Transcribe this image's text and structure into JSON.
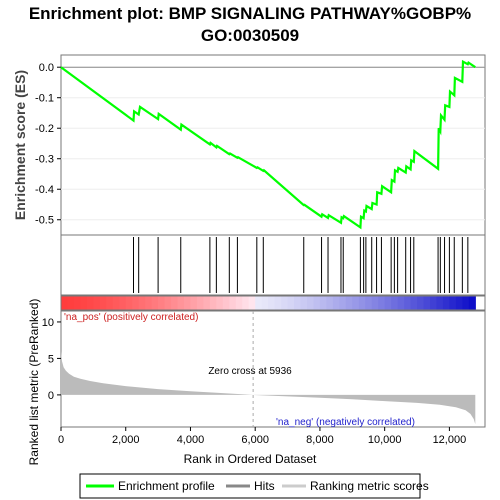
{
  "chart_data": {
    "type": "line",
    "title_lines": [
      "Enrichment plot: BMP SIGNALING PATHWAY%GOBP%",
      "GO:0030509"
    ],
    "top_panel": {
      "ylabel": "Enrichment score (ES)",
      "ylim": [
        -0.55,
        0.04
      ],
      "yticks": [
        0.0,
        -0.1,
        -0.2,
        -0.3,
        -0.4,
        -0.5
      ],
      "ytick_labels": [
        "0.0",
        "-0.1",
        "-0.2",
        "-0.3",
        "-0.4",
        "-0.5"
      ],
      "series": [
        {
          "name": "Enrichment profile",
          "color": "#00ff00",
          "x": [
            0,
            2240,
            2260,
            2400,
            2440,
            3000,
            3020,
            3700,
            3720,
            4600,
            4620,
            4800,
            4820,
            5200,
            5220,
            5450,
            5470,
            6050,
            6070,
            6250,
            6270,
            7500,
            7520,
            8050,
            8070,
            8250,
            8270,
            8650,
            8670,
            8720,
            8740,
            9250,
            9270,
            9350,
            9370,
            9420,
            9440,
            9600,
            9620,
            9750,
            9770,
            9900,
            9920,
            10200,
            10220,
            10300,
            10320,
            10400,
            10420,
            10650,
            10670,
            10800,
            10820,
            10900,
            10920,
            11650,
            11670,
            11720,
            11740,
            11850,
            11870,
            12000,
            12020,
            12150,
            12170,
            12400,
            12420,
            12570,
            12590,
            12800
          ],
          "y": [
            0.0,
            -0.175,
            -0.145,
            -0.155,
            -0.13,
            -0.17,
            -0.153,
            -0.205,
            -0.188,
            -0.253,
            -0.248,
            -0.263,
            -0.258,
            -0.285,
            -0.283,
            -0.297,
            -0.295,
            -0.33,
            -0.328,
            -0.34,
            -0.338,
            -0.452,
            -0.451,
            -0.49,
            -0.482,
            -0.494,
            -0.485,
            -0.51,
            -0.492,
            -0.495,
            -0.488,
            -0.525,
            -0.49,
            -0.495,
            -0.47,
            -0.473,
            -0.455,
            -0.465,
            -0.445,
            -0.45,
            -0.41,
            -0.415,
            -0.39,
            -0.41,
            -0.37,
            -0.375,
            -0.338,
            -0.343,
            -0.33,
            -0.345,
            -0.325,
            -0.335,
            -0.305,
            -0.31,
            -0.275,
            -0.333,
            -0.2,
            -0.21,
            -0.158,
            -0.172,
            -0.125,
            -0.13,
            -0.08,
            -0.092,
            -0.035,
            -0.048,
            0.018,
            0.01,
            0.015,
            0.0
          ]
        }
      ]
    },
    "hits": {
      "name": "Hits",
      "x": [
        2240,
        2400,
        3000,
        3700,
        4600,
        4800,
        5200,
        5450,
        6050,
        6250,
        7500,
        8050,
        8250,
        8650,
        8720,
        9250,
        9350,
        9420,
        9600,
        9750,
        9900,
        10200,
        10300,
        10400,
        10650,
        10800,
        10900,
        11650,
        11720,
        11850,
        12000,
        12150,
        12400,
        12570
      ]
    },
    "ranked_list": {
      "name": "Ranking metric scores",
      "ylabel": "Ranked list metric (PreRanked)",
      "ylim": [
        -4.4,
        11.5
      ],
      "yticks": [
        10,
        5,
        0
      ],
      "ytick_labels": [
        "10",
        "5",
        "0"
      ],
      "x": [
        0,
        30,
        80,
        150,
        250,
        400,
        600,
        900,
        1300,
        2000,
        3000,
        4000,
        5000,
        5936,
        7000,
        8000,
        9000,
        10000,
        11000,
        11700,
        12200,
        12500,
        12650,
        12750,
        12800
      ],
      "y": [
        6.0,
        4.6,
        3.8,
        3.3,
        2.9,
        2.5,
        2.2,
        1.9,
        1.6,
        1.2,
        0.8,
        0.5,
        0.25,
        0.0,
        -0.2,
        -0.4,
        -0.6,
        -0.85,
        -1.1,
        -1.35,
        -1.7,
        -2.1,
        -2.6,
        -3.3,
        -4.0
      ],
      "zero_cross_label": "Zero cross at 5936",
      "zero_cross_x": 5936,
      "pos_label": "'na_pos' (positively correlated)",
      "neg_label": "'na_neg' (negatively correlated)"
    },
    "xlabel": "Rank in Ordered Dataset",
    "xlim": [
      0,
      13100
    ],
    "xticks": [
      0,
      2000,
      4000,
      6000,
      8000,
      10000,
      12000
    ],
    "xtick_labels": [
      "0",
      "2,000",
      "4,000",
      "6,000",
      "8,000",
      "10,000",
      "12,000"
    ],
    "legend": {
      "placement": "bottom",
      "entries": [
        "Enrichment profile",
        "Hits",
        "Ranking metric scores"
      ]
    },
    "colors": {
      "profile": "#00ff00",
      "hits": "#000000",
      "metric_fill": "#bbbbbb",
      "pos_text": "#cc2222",
      "neg_text": "#2222cc"
    }
  }
}
